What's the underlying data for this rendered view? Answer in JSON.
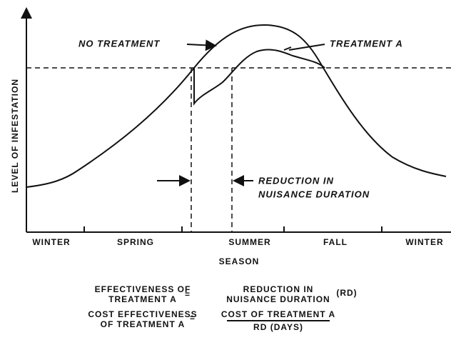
{
  "diagram": {
    "y_axis_label": "LEVEL OF INFESTATION",
    "x_axis_label": "SEASON",
    "seasons": [
      "WINTER",
      "SPRING",
      "SUMMER",
      "FALL",
      "WINTER"
    ],
    "curve_labels": {
      "no_treatment": "NO TREATMENT",
      "treatment_a": "TREATMENT A"
    },
    "annotation": [
      "REDUCTION IN",
      "NUISANCE DURATION"
    ],
    "formulas": [
      {
        "left": [
          "EFFECTIVENESS OF",
          "TREATMENT A"
        ],
        "equals": "=",
        "right": [
          "REDUCTION IN",
          "NUISANCE DURATION"
        ],
        "suffix": "(RD)"
      },
      {
        "left": [
          "COST EFFECTIVENESS",
          "OF TREATMENT A"
        ],
        "equals": "=",
        "numerator": "COST OF TREATMENT A",
        "denominator": "RD (DAYS)"
      }
    ]
  }
}
